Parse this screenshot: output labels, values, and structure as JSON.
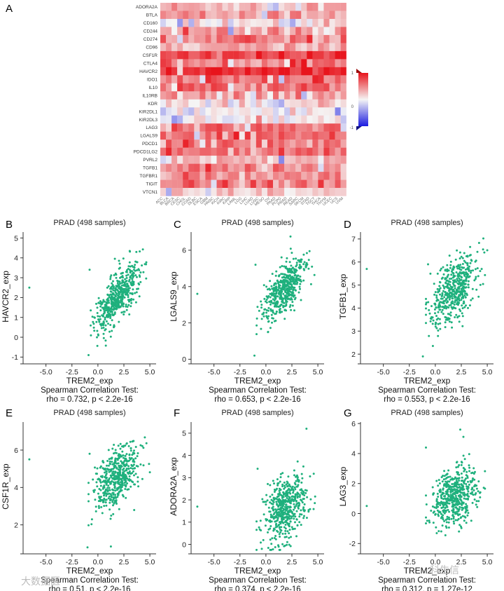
{
  "colors": {
    "point": "#1fb07d",
    "heat_high": "#e8141c",
    "heat_low": "#1c1ce0",
    "heat_mid": "#f5f5f5",
    "axis": "#333333"
  },
  "chart_data": [
    {
      "type": "heatmap",
      "panel": "A",
      "rows": [
        "ADORA2A",
        "BTLA",
        "CD160",
        "CD244",
        "CD274",
        "CD96",
        "CSF1R",
        "CTLA4",
        "HAVCR2",
        "IDO1",
        "IL10",
        "IL10RB",
        "KDR",
        "KIR2DL1",
        "KIR2DL3",
        "LAG3",
        "LGALS9",
        "PDCD1",
        "PDCD1LG2",
        "PVRL2",
        "TGFB1",
        "TGFBR1",
        "TIGIT",
        "VTCN1"
      ],
      "columns": [
        "ACC",
        "BLCA",
        "BRCA",
        "CESC",
        "CHOL",
        "COAD",
        "DLBC",
        "ESCA",
        "GBM",
        "HNSC",
        "KICH",
        "KIRC",
        "KIRP",
        "LAML",
        "LGG",
        "LIHC",
        "LUAD",
        "LUSC",
        "MESO",
        "OV",
        "PAAD",
        "PCPG",
        "PRAD",
        "READ",
        "SARC",
        "SKCM",
        "STAD",
        "TGCT",
        "THCA",
        "THYM",
        "UCEC",
        "UCS",
        "UVM"
      ],
      "row_means": [
        0.32,
        0.38,
        0.05,
        0.42,
        0.52,
        0.3,
        0.8,
        0.62,
        0.88,
        0.62,
        0.62,
        0.38,
        0.08,
        0.02,
        0.02,
        0.58,
        0.62,
        0.55,
        0.62,
        0.3,
        0.48,
        0.38,
        0.5,
        0.12
      ],
      "scale_min": -1,
      "scale_max": 1,
      "legend_ticks": [
        "1",
        "0",
        "-1"
      ]
    },
    {
      "type": "scatter",
      "panel": "B",
      "title": "PRAD (498 samples)",
      "xlabel": "TREM2_exp",
      "ylabel": "HAVCR2_exp",
      "xlim": [
        -7.2,
        5.6
      ],
      "ylim": [
        -1.2,
        5.3
      ],
      "xticks": [
        "-5.0",
        "-2.5",
        "0.0",
        "2.5",
        "5.0"
      ],
      "yticks": [
        "-1",
        "0",
        "1",
        "2",
        "3",
        "4",
        "5"
      ],
      "n": 498,
      "rho": 0.732,
      "caption1": "Spearman Correlation Test:",
      "caption2": "rho = 0.732, p < 2.2e-16",
      "x_mean": 1.85,
      "x_sd": 1.05,
      "y_mean": 2.0,
      "y_sd": 0.8,
      "outliers": [
        [
          -6.6,
          2.5
        ],
        [
          -0.8,
          3.4
        ],
        [
          -0.9,
          -0.9
        ]
      ]
    },
    {
      "type": "scatter",
      "panel": "C",
      "title": "PRAD (498 samples)",
      "xlabel": "TREM2_exp",
      "ylabel": "LGALS9_exp",
      "xlim": [
        -7.2,
        5.6
      ],
      "ylim": [
        -0.1,
        7.0
      ],
      "xticks": [
        "-5.0",
        "-2.5",
        "0.0",
        "2.5",
        "5.0"
      ],
      "yticks": [
        "0",
        "2",
        "4",
        "6"
      ],
      "n": 498,
      "rho": 0.653,
      "caption1": "Spearman Correlation Test:",
      "caption2": "rho = 0.653, p < 2.2e-16",
      "x_mean": 1.85,
      "x_sd": 1.05,
      "y_mean": 3.9,
      "y_sd": 0.9,
      "outliers": [
        [
          -6.6,
          3.6
        ],
        [
          -1.0,
          5.2
        ],
        [
          -1.1,
          0.2
        ]
      ]
    },
    {
      "type": "scatter",
      "panel": "D",
      "title": "PRAD (498 samples)",
      "xlabel": "TREM2_exp",
      "ylabel": "TGFB1_exp",
      "xlim": [
        -7.2,
        5.6
      ],
      "ylim": [
        1.7,
        7.3
      ],
      "xticks": [
        "-5.0",
        "-2.5",
        "0.0",
        "2.5",
        "5.0"
      ],
      "yticks": [
        "2",
        "3",
        "4",
        "5",
        "6",
        "7"
      ],
      "n": 498,
      "rho": 0.553,
      "caption1": "Spearman Correlation Test:",
      "caption2": "rho = 0.553, p < 2.2e-16",
      "x_mean": 1.85,
      "x_sd": 1.05,
      "y_mean": 4.8,
      "y_sd": 0.75,
      "outliers": [
        [
          -6.6,
          5.7
        ],
        [
          -0.7,
          5.9
        ],
        [
          -1.2,
          1.9
        ]
      ]
    },
    {
      "type": "scatter",
      "panel": "E",
      "title": "PRAD (498 samples)",
      "xlabel": "TREM2_exp",
      "ylabel": "CSF1R_exp",
      "xlim": [
        -7.2,
        5.6
      ],
      "ylim": [
        0.6,
        7.5
      ],
      "xticks": [
        "-5.0",
        "-2.5",
        "0.0",
        "2.5",
        "5.0"
      ],
      "yticks": [
        "2",
        "4",
        "6"
      ],
      "n": 498,
      "rho": 0.51,
      "caption1": "Spearman Correlation Test:",
      "caption2": "rho = 0.51, p < 2.2e-16",
      "x_mean": 1.85,
      "x_sd": 1.05,
      "y_mean": 4.6,
      "y_sd": 0.85,
      "outliers": [
        [
          -6.6,
          5.5
        ],
        [
          -0.8,
          5.8
        ],
        [
          -1.0,
          0.8
        ]
      ]
    },
    {
      "type": "scatter",
      "panel": "F",
      "title": "PRAD (498 samples)",
      "xlabel": "TREM2_exp",
      "ylabel": "ADORA2A_exp",
      "xlim": [
        -7.2,
        5.6
      ],
      "ylim": [
        -0.3,
        5.5
      ],
      "xticks": [
        "-5.0",
        "-2.5",
        "0.0",
        "2.5",
        "5.0"
      ],
      "yticks": [
        "0",
        "1",
        "2",
        "3",
        "4",
        "5"
      ],
      "n": 498,
      "rho": 0.374,
      "caption1": "Spearman Correlation Test:",
      "caption2": "rho = 0.374, p < 2.2e-16",
      "x_mean": 1.85,
      "x_sd": 1.05,
      "y_mean": 1.6,
      "y_sd": 0.75,
      "outliers": [
        [
          -6.6,
          1.7
        ],
        [
          -0.8,
          3.4
        ],
        [
          3.9,
          5.2
        ]
      ]
    },
    {
      "type": "scatter",
      "panel": "G",
      "title": "PRAD (498 samples)",
      "xlabel": "TREM2_exp",
      "ylabel": "LAG3_exp",
      "xlim": [
        -7.2,
        5.6
      ],
      "ylim": [
        -2.5,
        6.1
      ],
      "xticks": [
        "-5.0",
        "-2.5",
        "0.0",
        "2.5",
        "5.0"
      ],
      "yticks": [
        "-2",
        "0",
        "2",
        "4",
        "6"
      ],
      "n": 498,
      "rho": 0.312,
      "caption1": "Spearman Correlation Test:",
      "caption2": "rho = 0.312, p = 1.27e-12",
      "x_mean": 1.85,
      "x_sd": 1.05,
      "y_mean": 1.2,
      "y_sd": 1.0,
      "outliers": [
        [
          -6.6,
          0.5
        ],
        [
          -0.9,
          4.4
        ],
        [
          2.4,
          5.6
        ]
      ]
    }
  ],
  "watermarks": {
    "left": "大数据医",
    "right": "科生信"
  }
}
